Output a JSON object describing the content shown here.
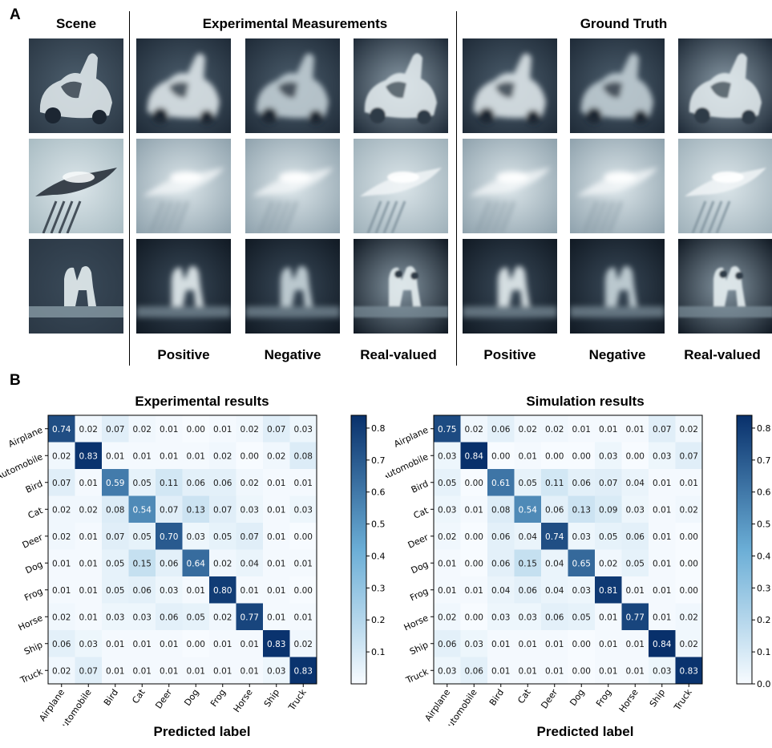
{
  "panel_a": {
    "letter": "A",
    "headers": {
      "scene": "Scene",
      "experimental": "Experimental Measurements",
      "ground_truth": "Ground Truth"
    },
    "footers": [
      "Positive",
      "Negative",
      "Real-valued",
      "Positive",
      "Negative",
      "Real-valued"
    ],
    "rows": [
      "car",
      "bird",
      "horse"
    ]
  },
  "panel_b": {
    "letter": "B"
  },
  "colormap": {
    "low": "#f7fbff",
    "mid": "#6baed6",
    "high": "#08306b"
  },
  "chart_data": [
    {
      "type": "heatmap",
      "title": "Experimental results",
      "xlabel": "Predicted label",
      "ylabel": "",
      "categories": [
        "Airplane",
        "Automobile",
        "Bird",
        "Cat",
        "Deer",
        "Dog",
        "Frog",
        "Horse",
        "Ship",
        "Truck"
      ],
      "values": [
        [
          0.74,
          0.02,
          0.07,
          0.02,
          0.01,
          0.0,
          0.01,
          0.02,
          0.07,
          0.03
        ],
        [
          0.02,
          0.83,
          0.01,
          0.01,
          0.01,
          0.01,
          0.02,
          0.0,
          0.02,
          0.08
        ],
        [
          0.07,
          0.01,
          0.59,
          0.05,
          0.11,
          0.06,
          0.06,
          0.02,
          0.01,
          0.01
        ],
        [
          0.02,
          0.02,
          0.08,
          0.54,
          0.07,
          0.13,
          0.07,
          0.03,
          0.01,
          0.03
        ],
        [
          0.02,
          0.01,
          0.07,
          0.05,
          0.7,
          0.03,
          0.05,
          0.07,
          0.01,
          0.0
        ],
        [
          0.01,
          0.01,
          0.05,
          0.15,
          0.06,
          0.64,
          0.02,
          0.04,
          0.01,
          0.01
        ],
        [
          0.01,
          0.01,
          0.05,
          0.06,
          0.03,
          0.01,
          0.8,
          0.01,
          0.01,
          0.0
        ],
        [
          0.02,
          0.01,
          0.03,
          0.03,
          0.06,
          0.05,
          0.02,
          0.77,
          0.01,
          0.01
        ],
        [
          0.06,
          0.03,
          0.01,
          0.01,
          0.01,
          0.0,
          0.01,
          0.01,
          0.83,
          0.02
        ],
        [
          0.02,
          0.07,
          0.01,
          0.01,
          0.01,
          0.01,
          0.01,
          0.01,
          0.03,
          0.83
        ]
      ],
      "colorbar": {
        "ticks": [
          "0.1",
          "0.2",
          "0.3",
          "0.4",
          "0.5",
          "0.6",
          "0.7",
          "0.8"
        ],
        "vmin": 0.0,
        "vmax": 0.84
      }
    },
    {
      "type": "heatmap",
      "title": "Simulation results",
      "xlabel": "Predicted label",
      "ylabel": "",
      "categories": [
        "Airplane",
        "Automobile",
        "Bird",
        "Cat",
        "Deer",
        "Dog",
        "Frog",
        "Horse",
        "Ship",
        "Truck"
      ],
      "values": [
        [
          0.75,
          0.02,
          0.06,
          0.02,
          0.02,
          0.01,
          0.01,
          0.01,
          0.07,
          0.02
        ],
        [
          0.03,
          0.84,
          0.0,
          0.01,
          0.0,
          0.0,
          0.03,
          0.0,
          0.03,
          0.07
        ],
        [
          0.05,
          0.0,
          0.61,
          0.05,
          0.11,
          0.06,
          0.07,
          0.04,
          0.01,
          0.01
        ],
        [
          0.03,
          0.01,
          0.08,
          0.54,
          0.06,
          0.13,
          0.09,
          0.03,
          0.01,
          0.02
        ],
        [
          0.02,
          0.0,
          0.06,
          0.04,
          0.74,
          0.03,
          0.05,
          0.06,
          0.01,
          0.0
        ],
        [
          0.01,
          0.0,
          0.06,
          0.15,
          0.04,
          0.65,
          0.02,
          0.05,
          0.01,
          0.0
        ],
        [
          0.01,
          0.01,
          0.04,
          0.06,
          0.04,
          0.03,
          0.81,
          0.01,
          0.01,
          0.0
        ],
        [
          0.02,
          0.0,
          0.03,
          0.03,
          0.06,
          0.05,
          0.01,
          0.77,
          0.01,
          0.02
        ],
        [
          0.06,
          0.03,
          0.01,
          0.01,
          0.01,
          0.0,
          0.01,
          0.01,
          0.84,
          0.02
        ],
        [
          0.03,
          0.06,
          0.01,
          0.01,
          0.01,
          0.0,
          0.01,
          0.01,
          0.03,
          0.83
        ]
      ],
      "colorbar": {
        "ticks": [
          "0.0",
          "0.1",
          "0.2",
          "0.3",
          "0.4",
          "0.5",
          "0.6",
          "0.7",
          "0.8"
        ],
        "vmin": 0.0,
        "vmax": 0.84
      }
    }
  ]
}
